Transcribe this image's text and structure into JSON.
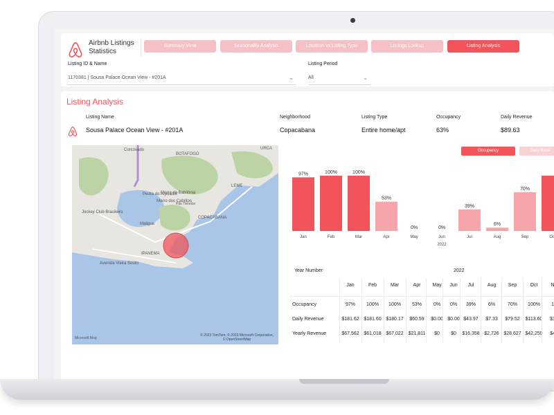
{
  "app": {
    "title": "Airbnb Listings Statistics"
  },
  "tabs": [
    {
      "label": "Summary View",
      "active": false
    },
    {
      "label": "Seasonality Analysis",
      "active": false
    },
    {
      "label": "Location vs Listing Type",
      "active": false
    },
    {
      "label": "Listings Lookup",
      "active": false
    },
    {
      "label": "Listing Analysis",
      "active": true
    }
  ],
  "filters": {
    "listing_label": "Listing ID & Name",
    "listing_value": "1170381 | Sousa Palace Ocean View - #201A",
    "period_label": "Listing Period",
    "period_value": "All"
  },
  "section": {
    "title": "Listing Analysis"
  },
  "info": {
    "listing_name_label": "Listing Name",
    "listing_name_value": "Sousa Palace Ocean View - #201A",
    "neighborhood_label": "Neighborhood",
    "neighborhood_value": "Copacabana",
    "listing_type_label": "Listing Type",
    "listing_type_value": "Entire home/apt",
    "occupancy_label": "Occupancy",
    "occupancy_value": "63%",
    "daily_revenue_label": "Daily Revenue",
    "daily_revenue_value": "$89.63"
  },
  "map": {
    "labels": [
      "Corcovado",
      "BOTAFOGO",
      "URCA",
      "Pedra do Arpoador",
      "Morro da Babilônia",
      "Morro dos Cabritos",
      "LEME",
      "COPACABANA",
      "Maligue",
      "Jockey Club Brasileiro",
      "IPANEMA",
      "Avenida Vieira Souto",
      "Pão Torrelos"
    ],
    "attribution": "© 2023 TomTom, © 2023 Microsoft Corporation, © OpenStreetMap",
    "brand": "Microsoft Bing"
  },
  "legend": {
    "occupancy": "Occupancy",
    "daily_revenue": "Daily Reve"
  },
  "colors": {
    "accent": "#f2545b",
    "light": "#f8a4ab",
    "tab_inactive": "#f6c1c6"
  },
  "chart_data": {
    "type": "bar",
    "x_group_label": "2022",
    "categories": [
      "Jan",
      "Feb",
      "Mar",
      "Apr",
      "May",
      "Jun",
      "Jul",
      "Aug",
      "Sep",
      "Oct"
    ],
    "series": [
      {
        "name": "Occupancy",
        "values": [
          97,
          100,
          100,
          53,
          0,
          0,
          39,
          6,
          70,
          100
        ]
      }
    ],
    "data_labels": [
      "97%",
      "100%",
      "100%",
      "53%",
      "0%",
      "0%",
      "39%",
      "6%",
      "70%",
      ""
    ],
    "ylim": [
      0,
      100
    ]
  },
  "table": {
    "year_header": "Year Number",
    "year_value": "2022",
    "columns": [
      "Jan",
      "Feb",
      "Mar",
      "Apr",
      "May",
      "Jun",
      "Jul",
      "Aug",
      "Sep",
      "Oct",
      "N"
    ],
    "rows": [
      {
        "label": "Occupancy",
        "cells": [
          "97%",
          "100%",
          "100%",
          "53%",
          "0%",
          "0%",
          "39%",
          "6%",
          "70%",
          "100%",
          "1"
        ]
      },
      {
        "label": "Daily Revenue",
        "cells": [
          "$181.62",
          "$181.60",
          "$180.17",
          "$60.59",
          "$0.00",
          "$0.00",
          "$43.97",
          "$7.33",
          "$79.52",
          "$113.60",
          "$1"
        ]
      },
      {
        "label": "Yearly Revenue",
        "cells": [
          "$67,562",
          "$61,018",
          "$67,022",
          "$21,811",
          "$0",
          "$0",
          "$16,358",
          "$2,726",
          "$28,627",
          "$42,259",
          "$4"
        ]
      }
    ]
  }
}
